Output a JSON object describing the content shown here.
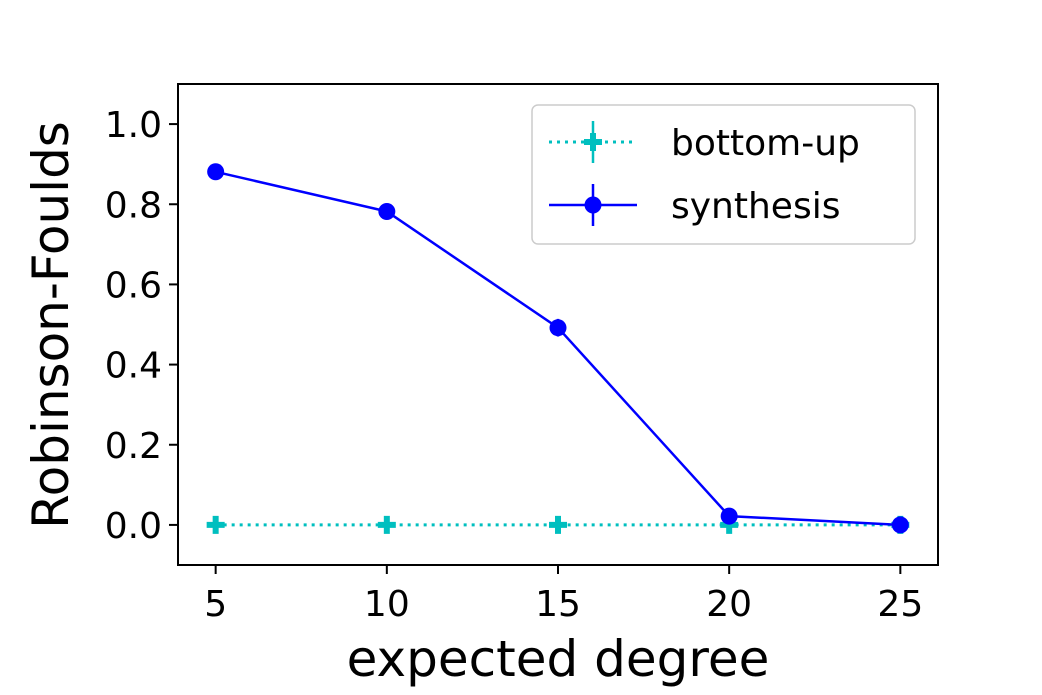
{
  "chart_data": {
    "type": "line",
    "xlabel": "expected degree",
    "ylabel": "Robinson-Foulds",
    "x": [
      5,
      10,
      15,
      20,
      25
    ],
    "xlim": [
      3.9,
      26.1
    ],
    "ylim": [
      -0.1,
      1.1
    ],
    "x_ticks": [
      "5",
      "10",
      "15",
      "20",
      "25"
    ],
    "y_ticks": [
      "0.0",
      "0.2",
      "0.4",
      "0.6",
      "0.8",
      "1.0"
    ],
    "grid": false,
    "legend_position": "top-right",
    "series": [
      {
        "name": "bottom-up",
        "color": "#00bfbf",
        "line_style": "dotted",
        "marker": "plus-filled",
        "values": [
          0.0,
          0.0,
          0.0,
          0.0,
          0.0
        ],
        "errors": [
          0.0,
          0.0,
          0.0,
          0.0,
          0.0
        ]
      },
      {
        "name": "synthesis",
        "color": "#0000ff",
        "line_style": "solid",
        "marker": "circle",
        "values": [
          0.881,
          0.782,
          0.492,
          0.022,
          0.0
        ],
        "errors": [
          0.005,
          0.005,
          0.022,
          0.005,
          0.0
        ]
      }
    ]
  }
}
